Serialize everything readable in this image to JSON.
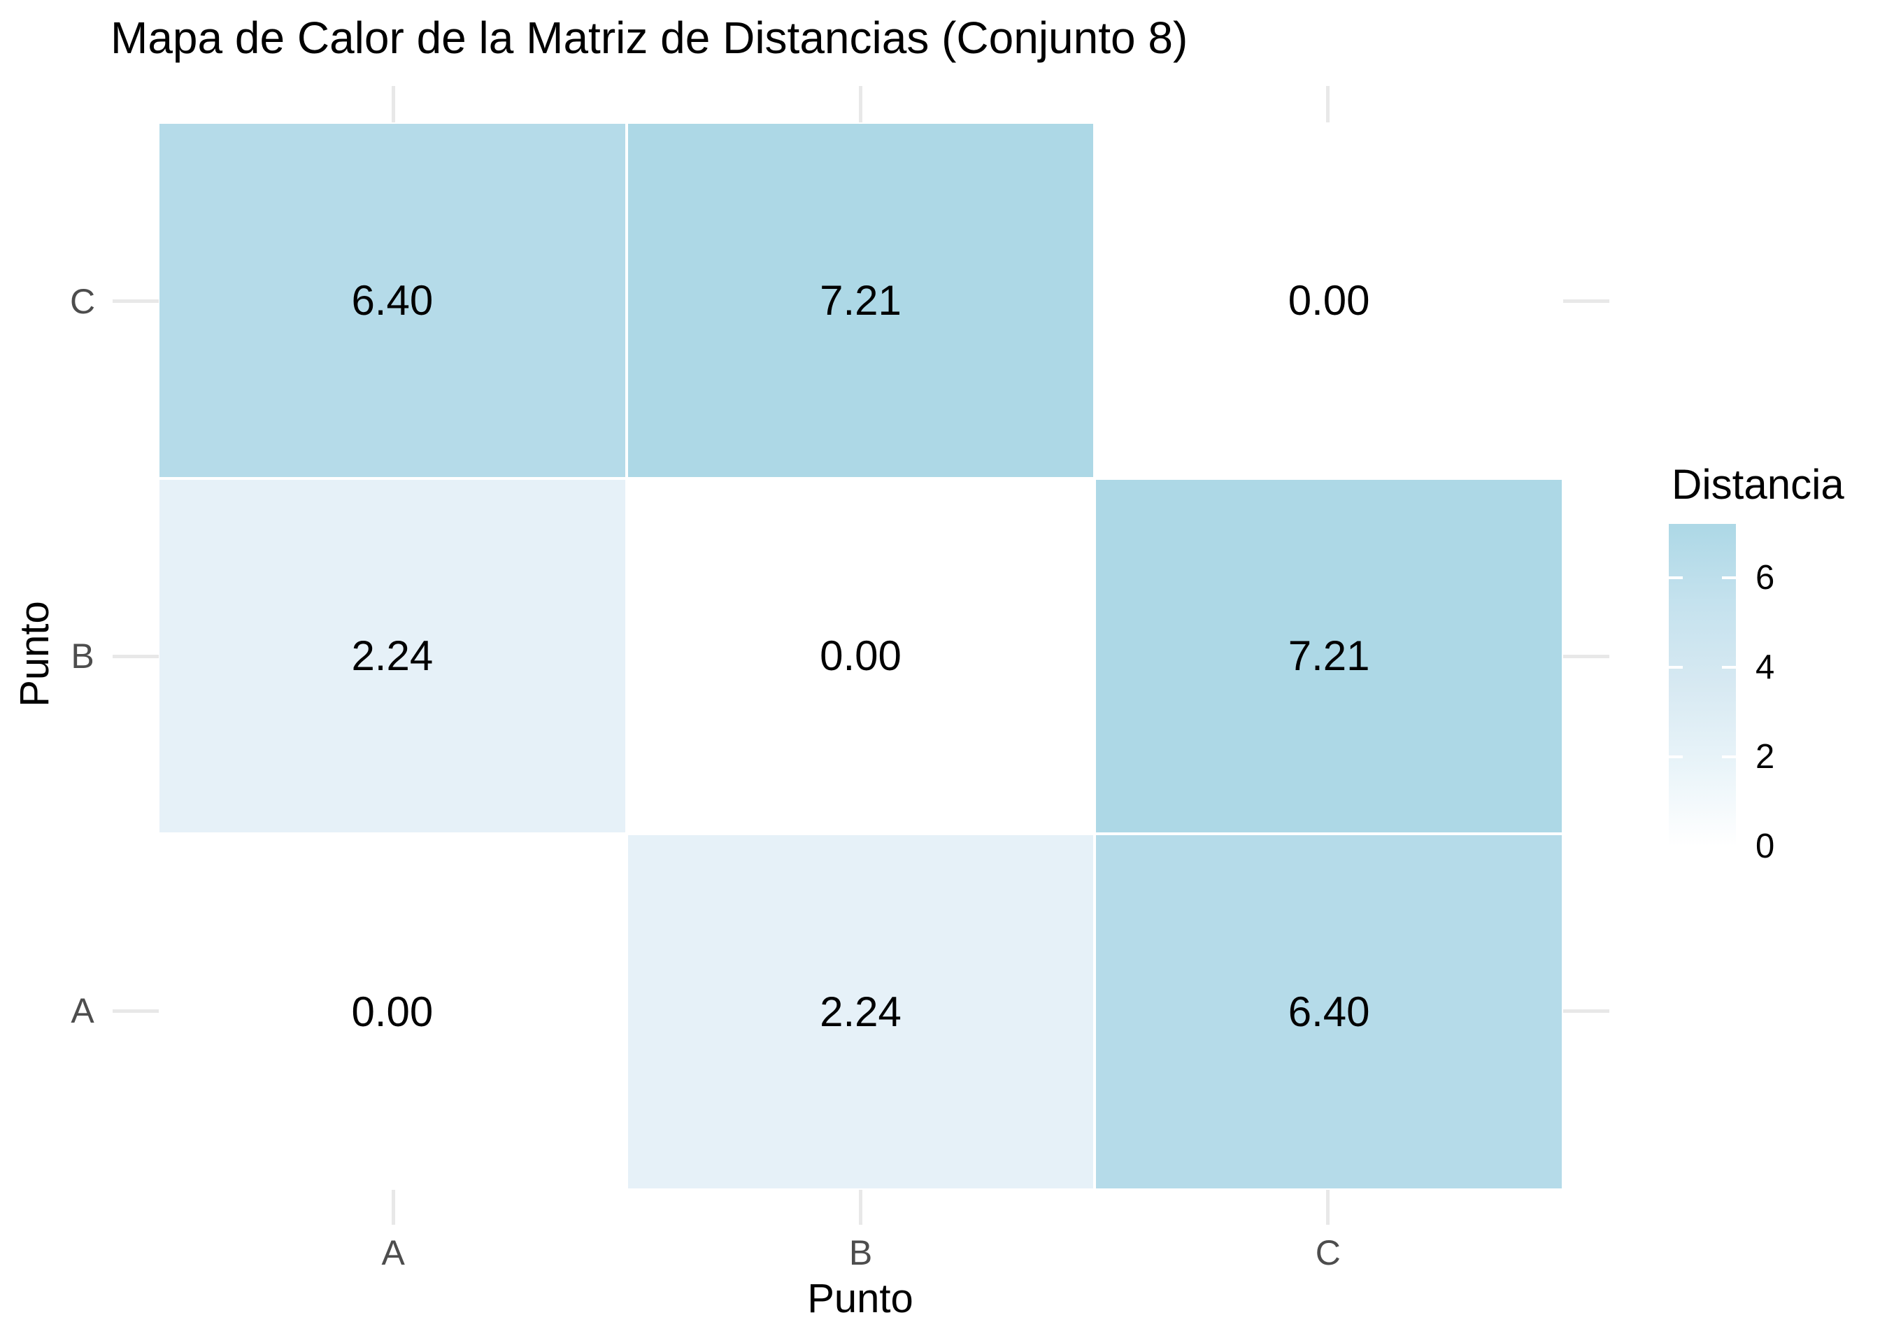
{
  "title": "Mapa de Calor de la Matriz de Distancias (Conjunto 8)",
  "chart_data": {
    "type": "heatmap",
    "title": "Mapa de Calor de la Matriz de Distancias (Conjunto 8)",
    "xlabel": "Punto",
    "ylabel": "Punto",
    "x_categories": [
      "A",
      "B",
      "C"
    ],
    "y_categories_bottom_to_top": [
      "A",
      "B",
      "C"
    ],
    "rows_top_to_bottom": [
      "C",
      "B",
      "A"
    ],
    "values_by_row_top_to_bottom": {
      "C": [
        6.4,
        7.21,
        0.0
      ],
      "B": [
        2.24,
        0.0,
        7.21
      ],
      "A": [
        0.0,
        2.24,
        6.4
      ]
    },
    "cells": [
      {
        "row": "C",
        "col": "A",
        "value": 6.4,
        "label": "6.40",
        "color": "#B5DBE9"
      },
      {
        "row": "C",
        "col": "B",
        "value": 7.21,
        "label": "7.21",
        "color": "#ADD8E6"
      },
      {
        "row": "C",
        "col": "C",
        "value": 0.0,
        "label": "0.00",
        "color": "#FFFFFF"
      },
      {
        "row": "B",
        "col": "A",
        "value": 2.24,
        "label": "2.24",
        "color": "#E6F1F8"
      },
      {
        "row": "B",
        "col": "B",
        "value": 0.0,
        "label": "0.00",
        "color": "#FFFFFF"
      },
      {
        "row": "B",
        "col": "C",
        "value": 7.21,
        "label": "7.21",
        "color": "#ADD8E6"
      },
      {
        "row": "A",
        "col": "A",
        "value": 0.0,
        "label": "0.00",
        "color": "#FFFFFF"
      },
      {
        "row": "A",
        "col": "B",
        "value": 2.24,
        "label": "2.24",
        "color": "#E6F1F8"
      },
      {
        "row": "A",
        "col": "C",
        "value": 6.4,
        "label": "6.40",
        "color": "#B5DBE9"
      }
    ],
    "legend": {
      "title": "Distancia",
      "ticks_top_to_bottom": [
        6,
        4,
        2,
        0
      ],
      "min": 0,
      "max": 7.21,
      "low_color": "#FFFFFF",
      "high_color": "#ADD8E6",
      "gradient_stops_top_to_bottom": [
        "#ADD8E6",
        "#C5E2EE",
        "#D7E9F2",
        "#E9F4F9",
        "#FFFFFF"
      ]
    },
    "style_colors": {
      "axis_text": "#4D4D4D",
      "axis_tick_mark": "#E8E8E8",
      "cell_text": "#000000",
      "background": "#FFFFFF"
    },
    "legend_position": "right",
    "grid": "off"
  }
}
